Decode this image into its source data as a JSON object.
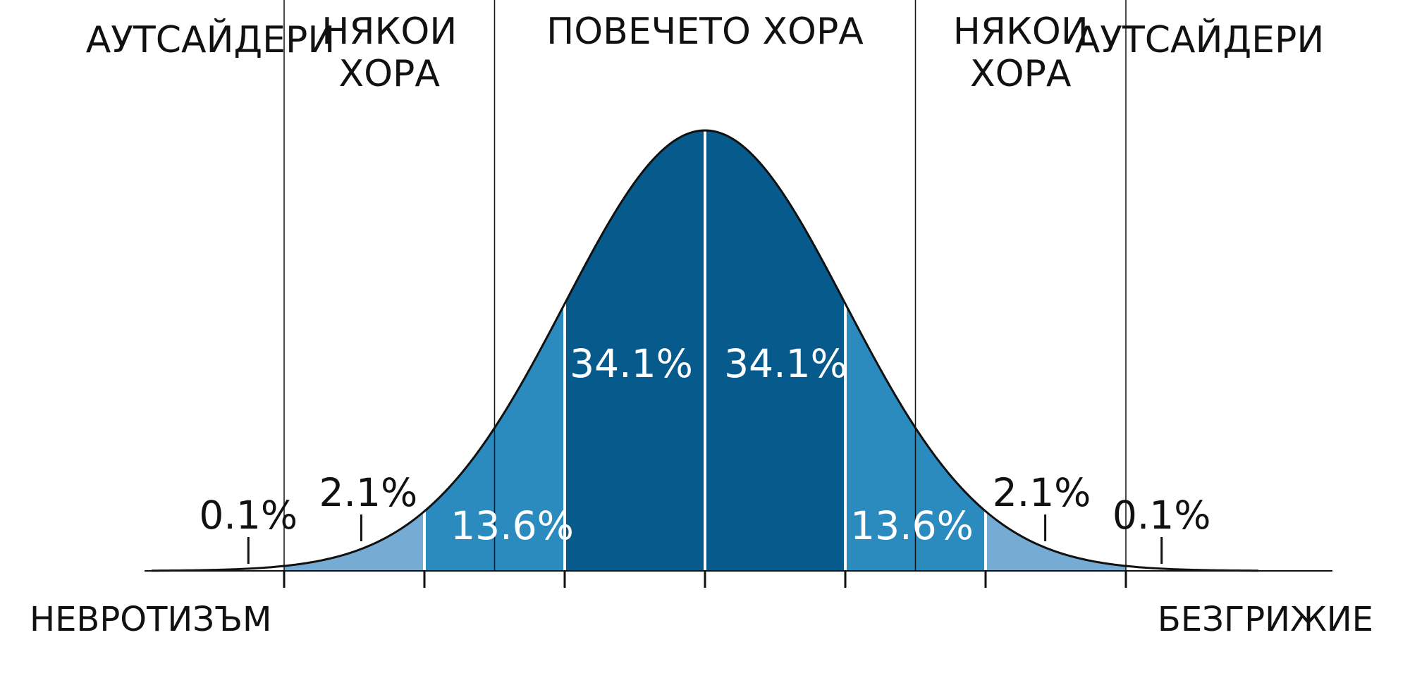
{
  "chart_data": {
    "type": "area",
    "distribution": "normal",
    "mean": 0,
    "sd": 1,
    "xlim": [
      -4,
      4
    ],
    "boundaries": [
      -3,
      -2,
      -1,
      0,
      1,
      2,
      3
    ],
    "band_colors": {
      "inner": "#065a8c",
      "middle": "#2b8bbf",
      "outer": "#76acd3",
      "divider": "#ffffff",
      "curve": "#111111"
    },
    "bands": [
      {
        "from": -4,
        "to": -3,
        "fill": "none",
        "label": "0.1%",
        "label_style": "dark"
      },
      {
        "from": -3,
        "to": -2,
        "fill": "outer",
        "label": "2.1%",
        "label_style": "dark"
      },
      {
        "from": -2,
        "to": -1,
        "fill": "middle",
        "label": "13.6%",
        "label_style": "light"
      },
      {
        "from": -1,
        "to": 0,
        "fill": "inner",
        "label": "34.1%",
        "label_style": "light"
      },
      {
        "from": 0,
        "to": 1,
        "fill": "inner",
        "label": "34.1%",
        "label_style": "light"
      },
      {
        "from": 1,
        "to": 2,
        "fill": "middle",
        "label": "13.6%",
        "label_style": "light"
      },
      {
        "from": 2,
        "to": 3,
        "fill": "outer",
        "label": "2.1%",
        "label_style": "dark"
      },
      {
        "from": 3,
        "to": 4,
        "fill": "none",
        "label": "0.1%",
        "label_style": "dark"
      }
    ],
    "region_boundaries": [
      -3,
      -1.5,
      1.5,
      3
    ],
    "regions": [
      {
        "from": -4,
        "to": -3,
        "lines": [
          "АУТСАЙДЕРИ"
        ]
      },
      {
        "from": -3,
        "to": -1.5,
        "lines": [
          "НЯКОИ",
          "ХОРА"
        ]
      },
      {
        "from": -1.5,
        "to": 1.5,
        "lines": [
          "ПОВЕЧЕТО ХОРА"
        ]
      },
      {
        "from": 1.5,
        "to": 3,
        "lines": [
          "НЯКОИ",
          "ХОРА"
        ]
      },
      {
        "from": 3,
        "to": 4,
        "lines": [
          "АУТСАЙДЕРИ"
        ]
      }
    ],
    "xlabel_left": "НЕВРОТИЗЪМ",
    "xlabel_right": "БЕЗГРИЖИЕ",
    "grid": false,
    "legend": "none"
  }
}
